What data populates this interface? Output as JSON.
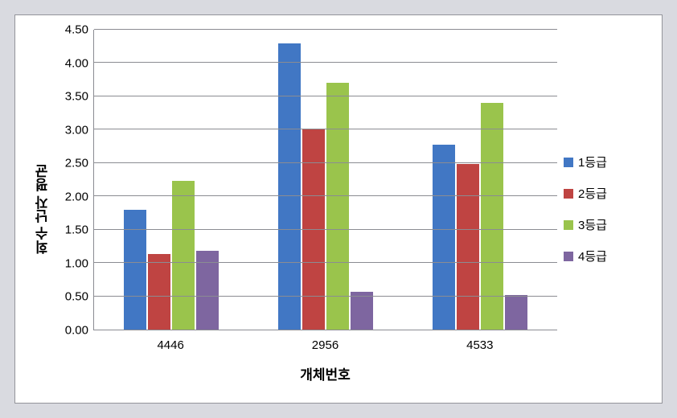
{
  "chart": {
    "type": "bar",
    "background_color": "#ffffff",
    "outer_background_color": "#d9dae0",
    "border_color": "#93949a",
    "grid_color": "#8b8c92",
    "text_color": "#000000",
    "y_axis_title": "회수 난자 평균",
    "x_axis_title": "개체번호",
    "title_fontsize": 17,
    "label_fontsize": 15,
    "ylim": [
      0.0,
      4.5
    ],
    "ytick_step": 0.5,
    "yticks": [
      "0.00",
      "0.50",
      "1.00",
      "1.50",
      "2.00",
      "2.50",
      "3.00",
      "3.50",
      "4.00",
      "4.50"
    ],
    "categories": [
      "4446",
      "2956",
      "4533"
    ],
    "series": [
      {
        "name": "1등급",
        "color": "#4177c4",
        "values": [
          1.8,
          4.3,
          2.77
        ]
      },
      {
        "name": "2등급",
        "color": "#bf4442",
        "values": [
          1.13,
          3.0,
          2.48
        ]
      },
      {
        "name": "3등급",
        "color": "#9ac44c",
        "values": [
          2.23,
          3.7,
          3.4
        ]
      },
      {
        "name": "4등급",
        "color": "#7e66a0",
        "values": [
          1.18,
          0.57,
          0.52
        ]
      }
    ],
    "bar_width": 0.18,
    "bar_gap": 0.02
  }
}
